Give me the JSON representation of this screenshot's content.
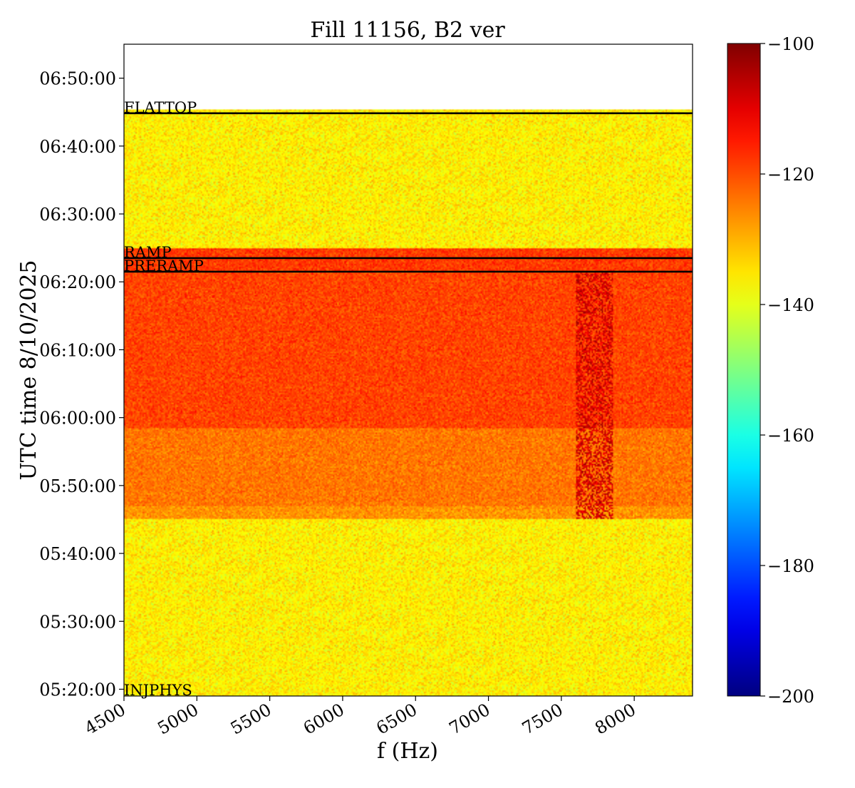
{
  "chart_data": {
    "type": "heatmap",
    "title": "Fill 11156, B2 ver",
    "xlabel": "f (Hz)",
    "ylabel": "UTC time 8/10/2025",
    "x_data_range": [
      4500,
      8400
    ],
    "xlim": [
      4500,
      8400
    ],
    "x_ticks": [
      4500,
      5000,
      5500,
      6000,
      6500,
      7000,
      7500,
      8000
    ],
    "x_tick_labels": [
      "4500",
      "5000",
      "5500",
      "6000",
      "6500",
      "7000",
      "7500",
      "8000"
    ],
    "ylim": [
      "05:19:00",
      "06:55:00"
    ],
    "data_time_range": [
      "05:19:00",
      "06:45:20"
    ],
    "y_ticks": [
      "05:20:00",
      "05:30:00",
      "05:40:00",
      "05:50:00",
      "06:00:00",
      "06:10:00",
      "06:20:00",
      "06:30:00",
      "06:40:00",
      "06:50:00"
    ],
    "y_tick_labels": [
      "05:20:00",
      "05:30:00",
      "05:40:00",
      "05:50:00",
      "06:00:00",
      "06:10:00",
      "06:20:00",
      "06:30:00",
      "06:40:00",
      "06:50:00"
    ],
    "colorbar": {
      "colormap": "jet",
      "min": -200,
      "max": -100,
      "ticks": [
        -100,
        -120,
        -140,
        -160,
        -180,
        -200
      ],
      "tick_labels": [
        "−100",
        "−120",
        "−140",
        "−160",
        "−180",
        "−200"
      ]
    },
    "regions": [
      {
        "start": "05:19:00",
        "end": "05:45:00",
        "level_db": -136,
        "description": "quiet"
      },
      {
        "start": "05:45:00",
        "end": "05:47:00",
        "level_db": -127
      },
      {
        "start": "05:47:00",
        "end": "05:58:30",
        "level_db": -124
      },
      {
        "start": "05:58:30",
        "end": "06:21:30",
        "level_db": -119
      },
      {
        "start": "06:21:30",
        "end": "06:25:00",
        "level_db": -118
      },
      {
        "start": "06:25:00",
        "end": "06:45:20",
        "level_db": -136
      }
    ],
    "feature": {
      "f_range": [
        7600,
        7850
      ],
      "time_range": [
        "05:45:00",
        "06:21:30"
      ],
      "level_db": -108
    },
    "phases": [
      {
        "name": "INJPHYS",
        "time": "05:19:00"
      },
      {
        "name": "PRERAMP",
        "time": "06:21:30"
      },
      {
        "name": "RAMP",
        "time": "06:23:30"
      },
      {
        "name": "FLATTOP",
        "time": "06:44:50"
      }
    ]
  }
}
